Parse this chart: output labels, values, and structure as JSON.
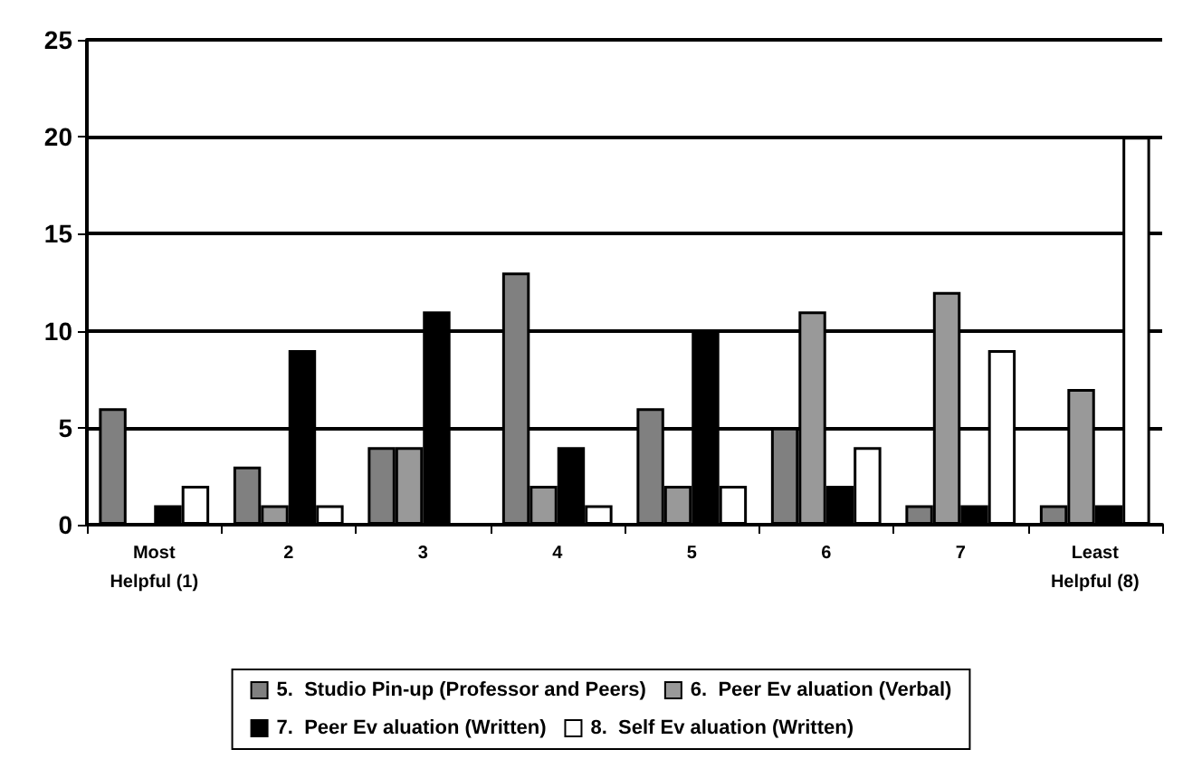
{
  "chart_data": {
    "type": "bar",
    "categories": [
      "Most\nHelpful (1)",
      "2",
      "3",
      "4",
      "5",
      "6",
      "7",
      "Least\nHelpful (8)"
    ],
    "series": [
      {
        "name": "5.  Studio Pin-up (Professor and Peers)",
        "color": "#808080",
        "values": [
          6,
          3,
          4,
          13,
          6,
          5,
          1,
          1
        ]
      },
      {
        "name": "6.  Peer Ev aluation (Verbal)",
        "color": "#999999",
        "values": [
          0,
          1,
          4,
          2,
          2,
          11,
          12,
          7
        ]
      },
      {
        "name": "7.  Peer Ev aluation (Written)",
        "color": "#000000",
        "values": [
          1,
          9,
          11,
          4,
          10,
          2,
          1,
          1
        ]
      },
      {
        "name": "8.  Self Ev aluation (Written)",
        "color": "#ffffff",
        "values": [
          2,
          1,
          0,
          1,
          2,
          4,
          9,
          20
        ]
      }
    ],
    "ylim": [
      0,
      25
    ],
    "yticks": [
      0,
      5,
      10,
      15,
      20,
      25
    ],
    "grid": "y",
    "legend": "bottom"
  }
}
